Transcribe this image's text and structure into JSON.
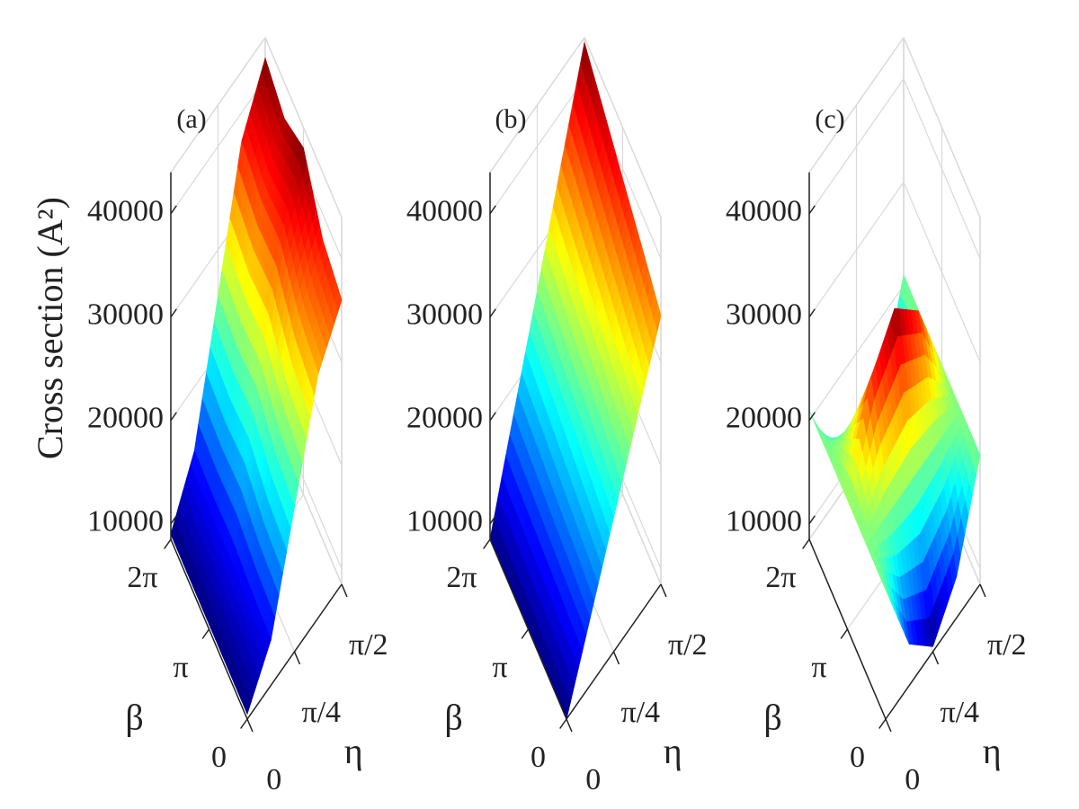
{
  "chart_data": [
    {
      "type": "surface3d",
      "label": "(a)",
      "zlabel": "Cross section (A²)",
      "xlabel": "β",
      "ylabel": "η",
      "x": [
        0,
        1.5708,
        3.1416,
        4.7124,
        6.2832
      ],
      "y": [
        0,
        0.3927,
        0.7854,
        1.1781,
        1.5708
      ],
      "z": [
        [
          9000,
          12900,
          22500,
          32100,
          36000
        ],
        [
          9000,
          13200,
          23300,
          33300,
          37500
        ],
        [
          9000,
          13800,
          25500,
          36200,
          42000
        ],
        [
          9000,
          13600,
          24800,
          35900,
          40500
        ],
        [
          9000,
          13800,
          25500,
          37200,
          42000
        ]
      ],
      "xlim": [
        0,
        6.2832
      ],
      "ylim": [
        0,
        1.5708
      ],
      "zlim": [
        8500,
        44000
      ],
      "xticks": [
        0,
        {
          "value": 3.1416,
          "label": "π"
        },
        {
          "value": 6.2832,
          "label": "2π"
        }
      ],
      "yticks": [
        0,
        {
          "value": 0.7854,
          "label": "π/4"
        },
        {
          "value": 1.5708,
          "label": "π/2"
        }
      ],
      "zticks": [
        10000,
        20000,
        30000,
        40000
      ],
      "colormap": "jet",
      "grid": true
    },
    {
      "type": "surface3d",
      "label": "(b)",
      "xlabel": "β",
      "ylabel": "η",
      "x": [
        0,
        1.5708,
        3.1416,
        4.7124,
        6.2832
      ],
      "y": [
        0,
        0.3927,
        0.7854,
        1.1781,
        1.5708
      ],
      "z": [
        [
          8500,
          15000,
          21500,
          28000,
          34500
        ],
        [
          8500,
          15600,
          22600,
          29700,
          36800
        ],
        [
          8500,
          16100,
          23800,
          31400,
          39000
        ],
        [
          8500,
          16700,
          24900,
          33100,
          41300
        ],
        [
          8500,
          17300,
          26000,
          34800,
          43500
        ]
      ],
      "xlim": [
        0,
        6.2832
      ],
      "ylim": [
        0,
        1.5708
      ],
      "zlim": [
        8500,
        44000
      ],
      "xticks": [
        0,
        {
          "value": 3.1416,
          "label": "π"
        },
        {
          "value": 6.2832,
          "label": "2π"
        }
      ],
      "yticks": [
        0,
        {
          "value": 0.7854,
          "label": "π/4"
        },
        {
          "value": 1.5708,
          "label": "π/2"
        }
      ],
      "zticks": [
        10000,
        20000,
        30000,
        40000
      ],
      "colormap": "jet",
      "grid": true
    },
    {
      "type": "surface3d",
      "label": "(c)",
      "xlabel": "β",
      "ylabel": "η",
      "x": [
        0,
        1.5708,
        3.1416,
        4.7124,
        6.2832
      ],
      "y": [
        0,
        0.3927,
        0.7854,
        1.1781,
        1.5708
      ],
      "z": [
        [
          21000,
          12500,
          9000,
          12500,
          21000
        ],
        [
          21000,
          21000,
          21000,
          21000,
          21000
        ],
        [
          21000,
          29500,
          33000,
          29500,
          21000
        ],
        [
          21000,
          21000,
          21000,
          21000,
          21000
        ],
        [
          21000,
          12500,
          9000,
          12500,
          21000
        ]
      ],
      "xlim": [
        0,
        6.2832
      ],
      "ylim": [
        0,
        1.5708
      ],
      "zlim": [
        8500,
        44000
      ],
      "xticks": [
        0,
        {
          "value": 3.1416,
          "label": "π"
        },
        {
          "value": 6.2832,
          "label": "2π"
        }
      ],
      "yticks": [
        0,
        {
          "value": 0.7854,
          "label": "π/4"
        },
        {
          "value": 1.5708,
          "label": "π/2"
        }
      ],
      "zticks": [
        10000,
        20000,
        30000,
        40000
      ],
      "colormap": "jet",
      "grid": true
    }
  ]
}
